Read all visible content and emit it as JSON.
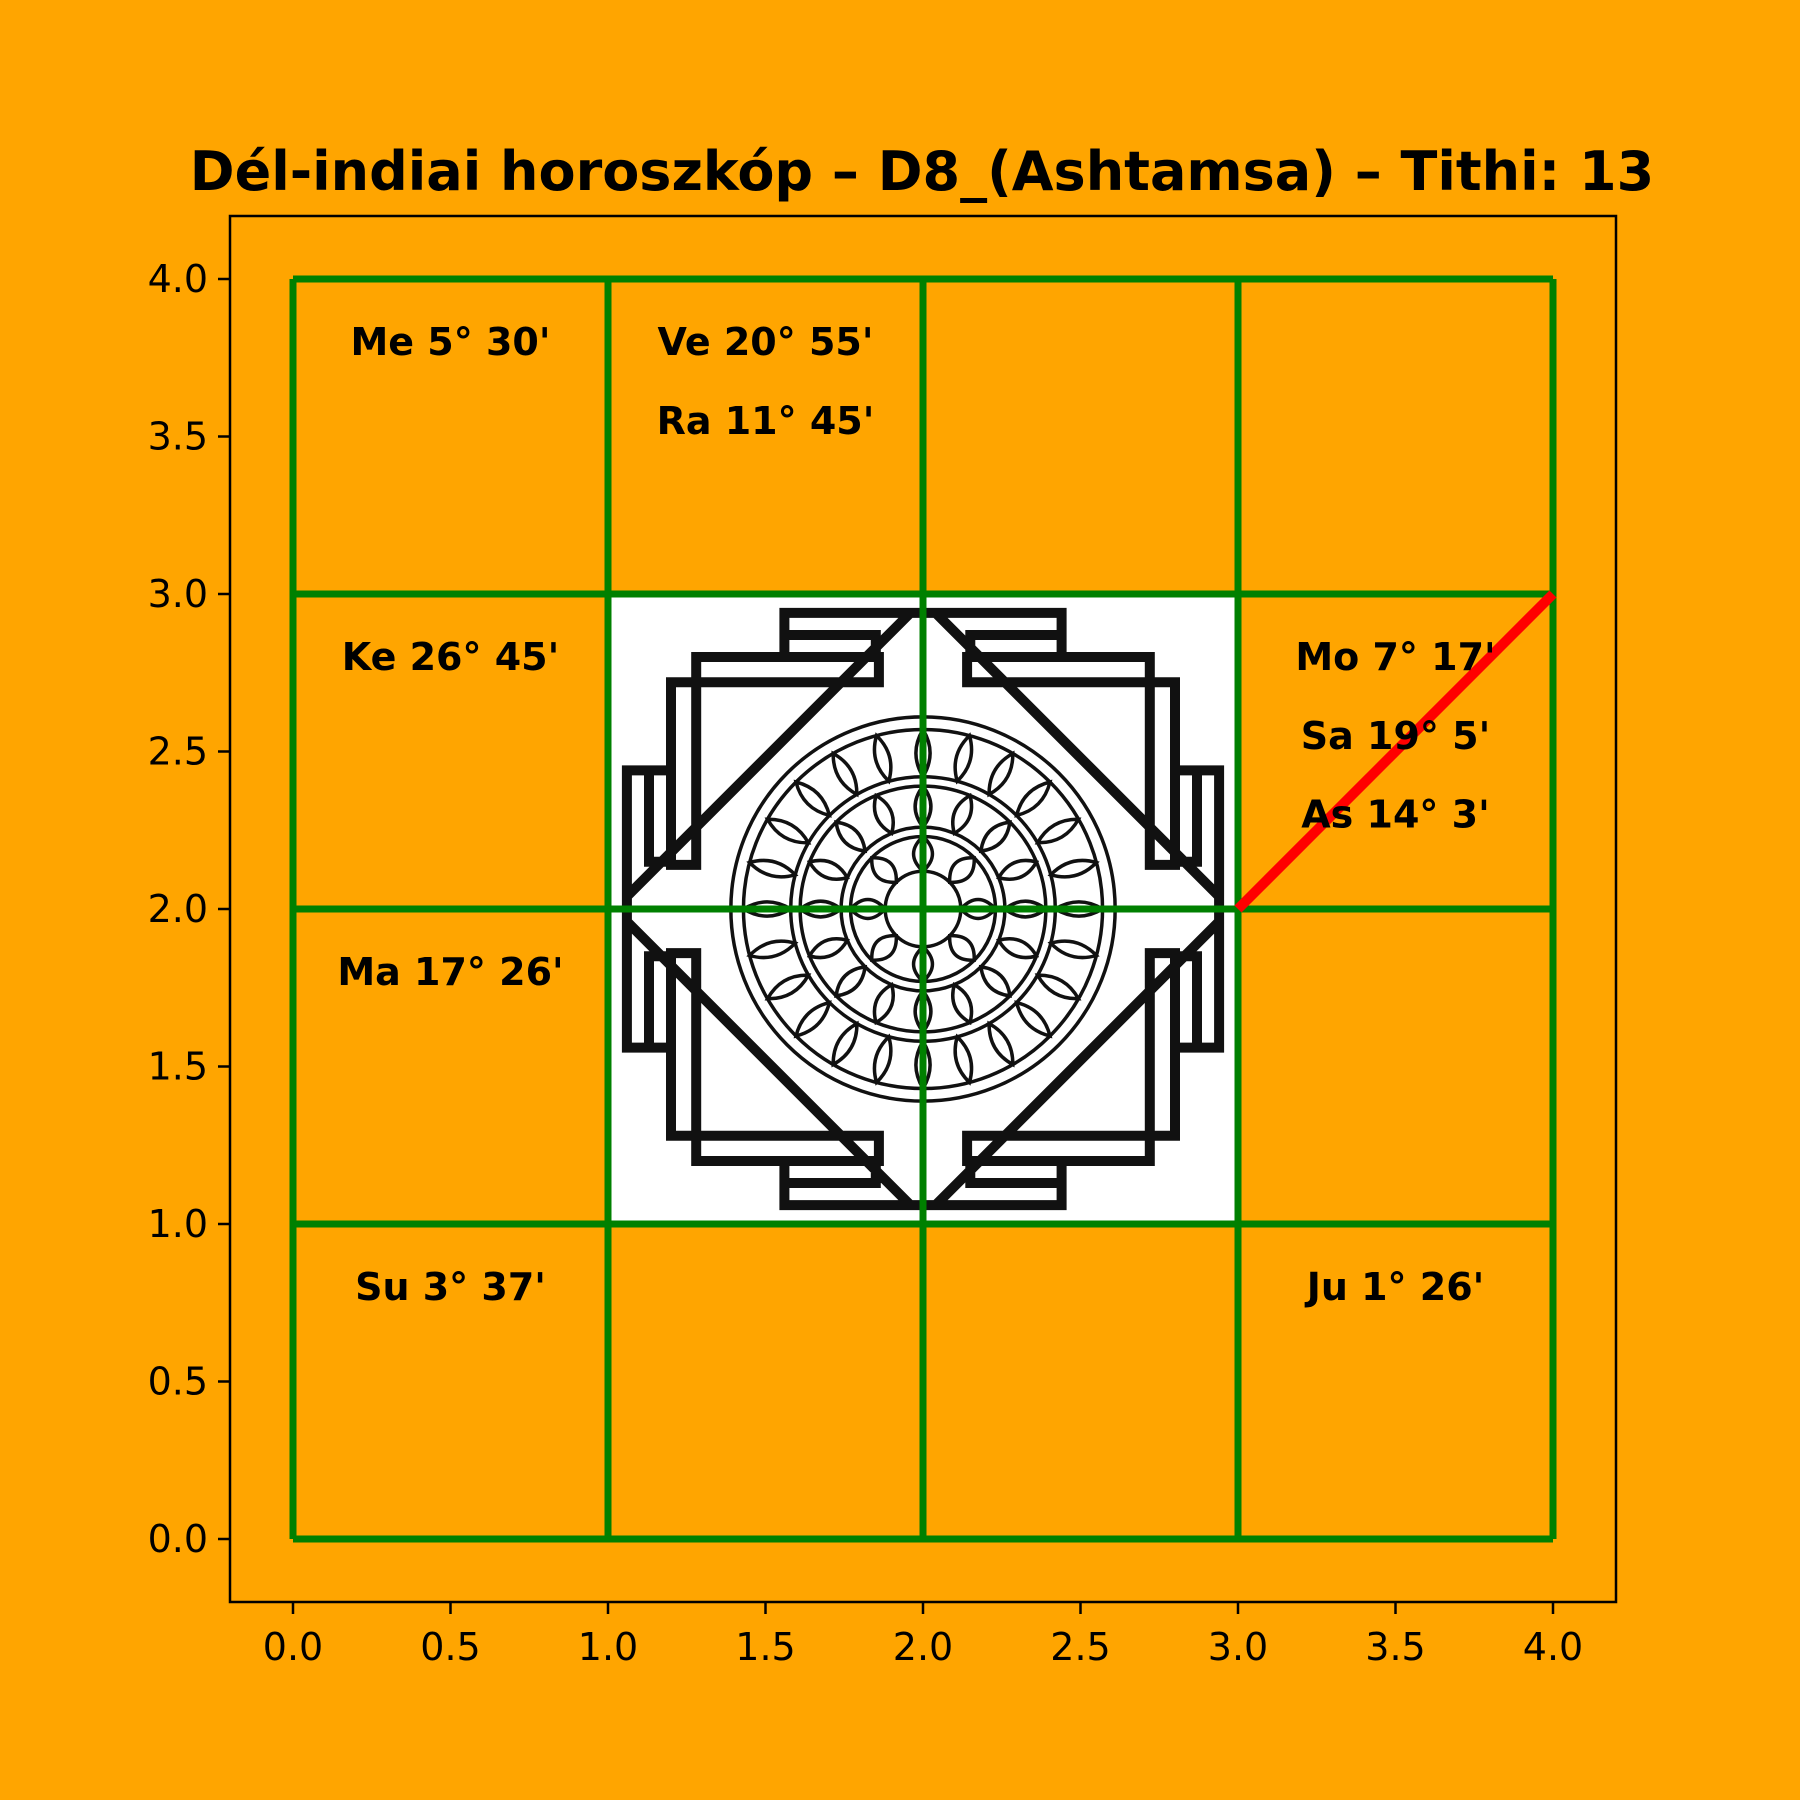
{
  "chart_data": {
    "type": "diagram",
    "title": "Dél-indiai horoszkóp – D8_(Ashtamsa) – Tithi: 13",
    "xlim": [
      -0.2,
      4.2
    ],
    "ylim": [
      -0.2,
      4.2
    ],
    "x_ticks": [
      "0.0",
      "0.5",
      "1.0",
      "1.5",
      "2.0",
      "2.5",
      "3.0",
      "3.5",
      "4.0"
    ],
    "y_ticks": [
      "0.0",
      "0.5",
      "1.0",
      "1.5",
      "2.0",
      "2.5",
      "3.0",
      "3.5",
      "4.0"
    ],
    "grid": {
      "cols": 4,
      "rows": 4,
      "color": "#008000",
      "center_color": "#ffffff"
    },
    "background": "#ffa500",
    "houses": [
      {
        "col": 0,
        "row": 3,
        "planets": [
          "Me 5° 30'"
        ]
      },
      {
        "col": 1,
        "row": 3,
        "planets": [
          "Ve 20° 55'",
          "Ra 11° 45'"
        ]
      },
      {
        "col": 0,
        "row": 2,
        "planets": [
          "Ke 26° 45'"
        ]
      },
      {
        "col": 3,
        "row": 2,
        "planets": [
          "Mo 7° 17'",
          "Sa 19° 5'",
          "As 14° 3'"
        ]
      },
      {
        "col": 0,
        "row": 1,
        "planets": [
          "Ma 17° 26'"
        ]
      },
      {
        "col": 0,
        "row": 0,
        "planets": [
          "Su 3° 37'"
        ]
      },
      {
        "col": 3,
        "row": 0,
        "planets": [
          "Ju 1° 26'"
        ]
      }
    ],
    "ascendant_marker": {
      "from": [
        3,
        2
      ],
      "to": [
        4,
        3
      ],
      "color": "#ff0000"
    }
  }
}
